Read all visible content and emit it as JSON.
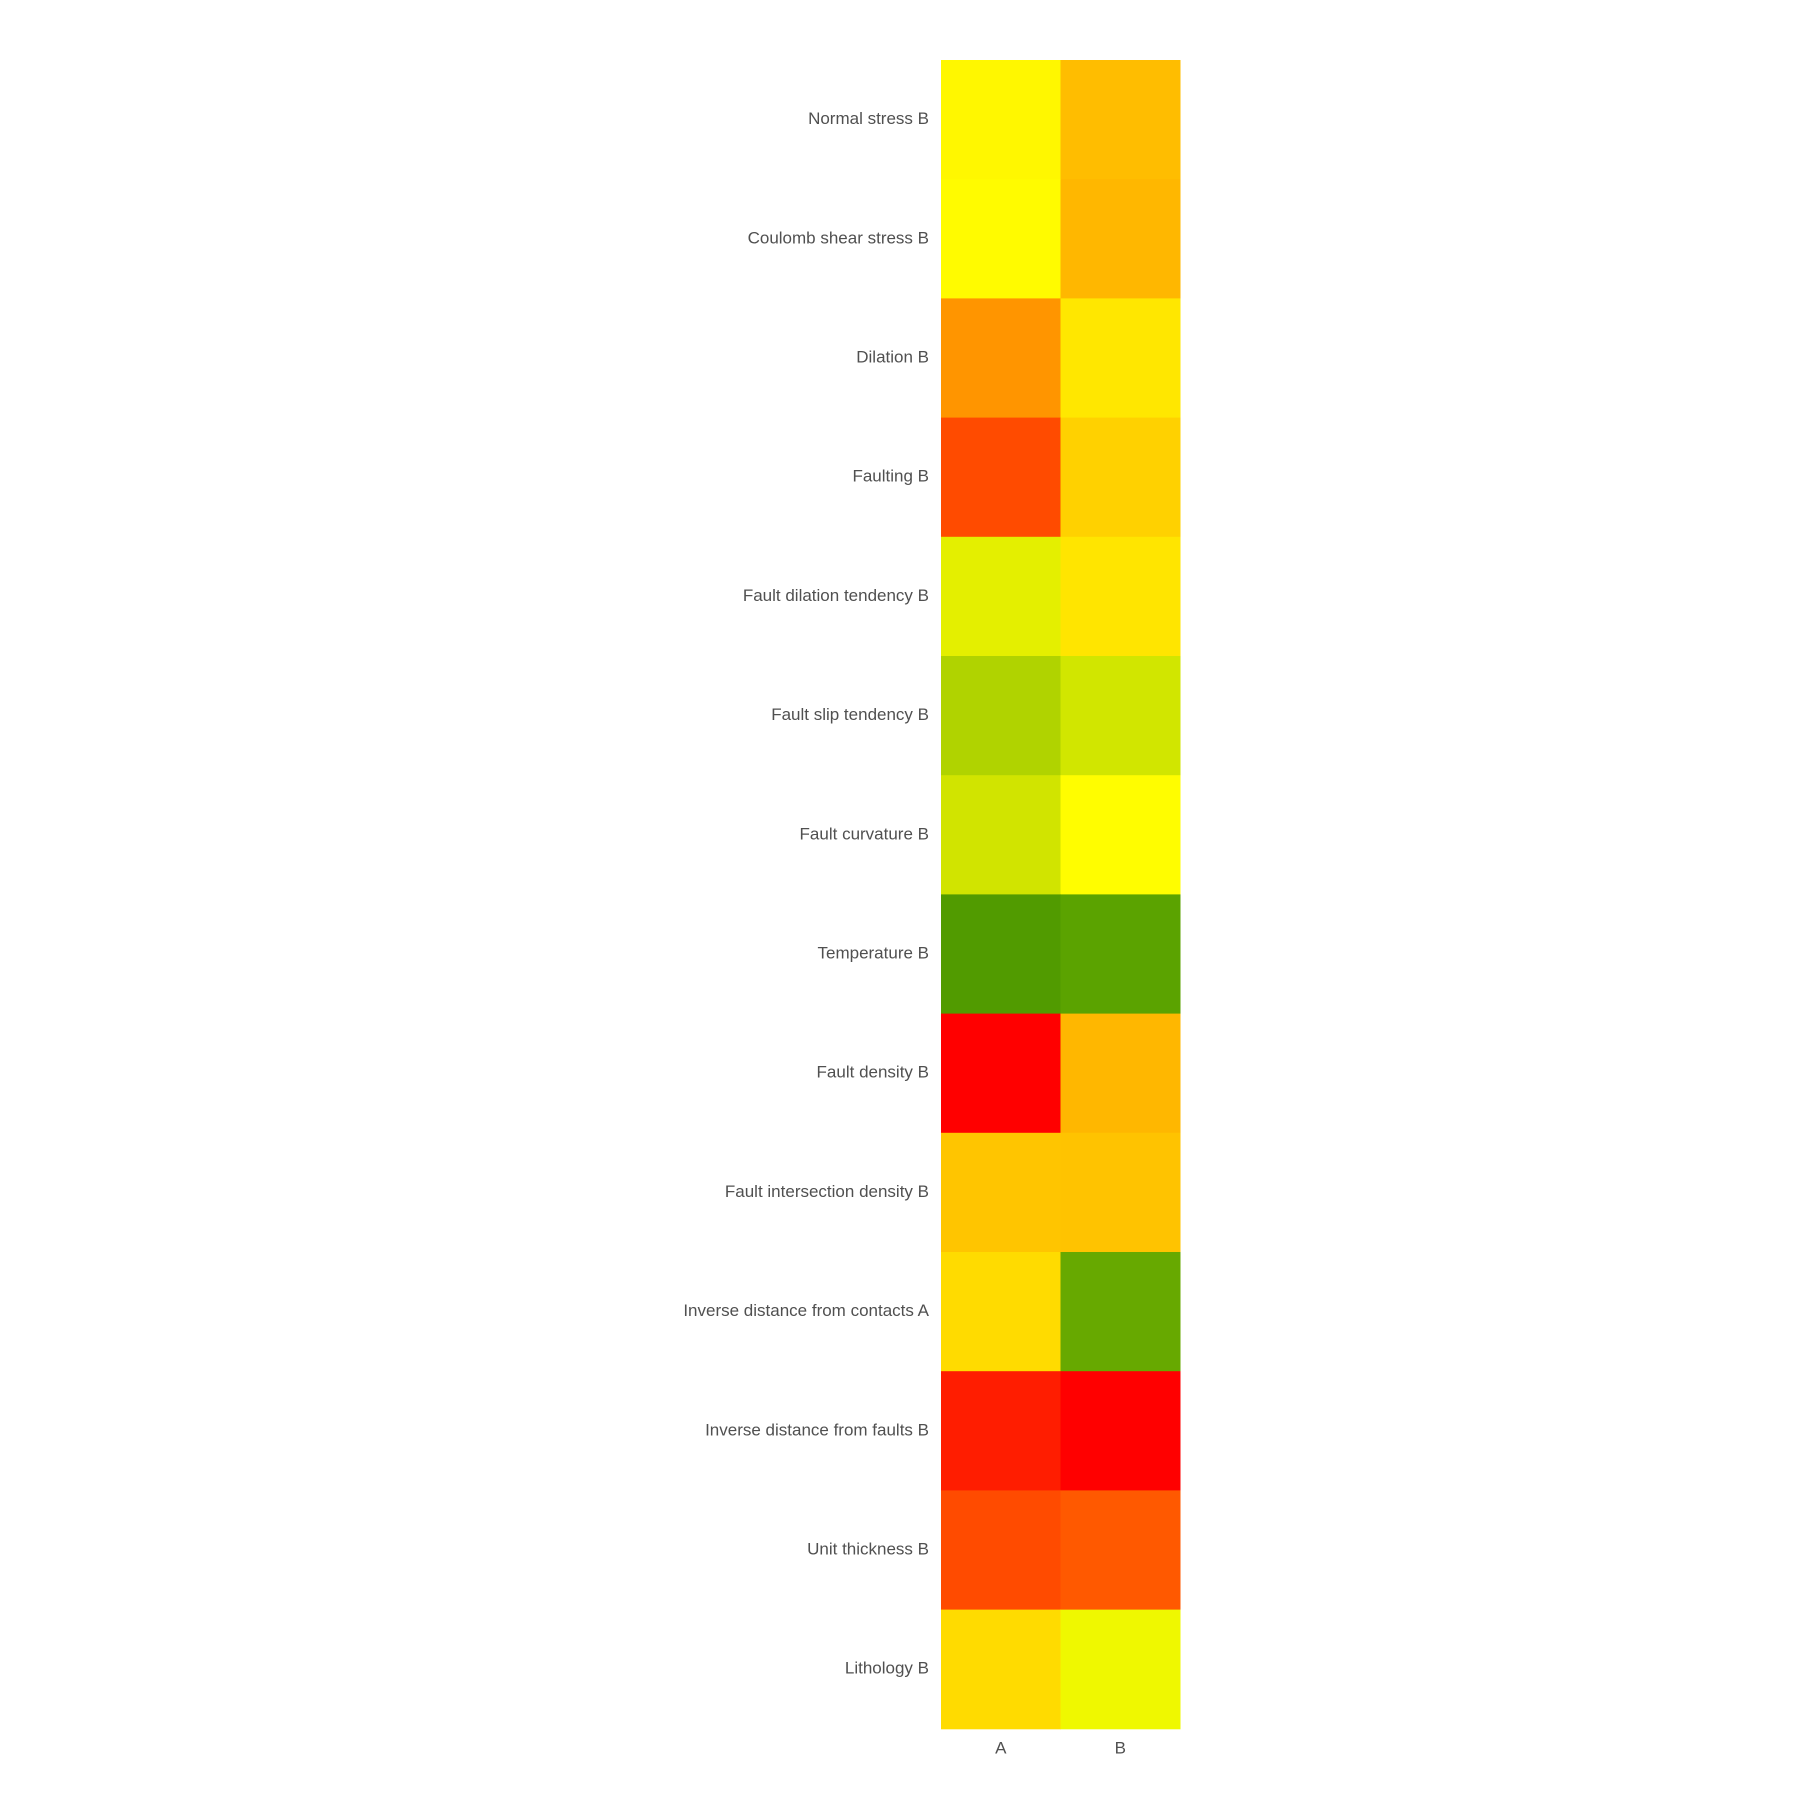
{
  "chart_data": {
    "type": "heatmap",
    "title": "",
    "xlabel": "",
    "ylabel": "",
    "x_categories": [
      "A",
      "B"
    ],
    "y_categories": [
      "Normal stress B",
      "Coulomb shear stress B",
      "Dilation B",
      "Faulting B",
      "Fault dilation tendency B",
      "Fault slip tendency B",
      "Fault curvature B",
      "Temperature B",
      "Fault density B",
      "Fault intersection density B",
      "Inverse distance from contacts A",
      "Inverse distance from faults B",
      "Unit thickness B",
      "Lithology B"
    ],
    "cells": [
      [
        "#fff700",
        "#ffbd00"
      ],
      [
        "#fffb00",
        "#ffb700"
      ],
      [
        "#ff9500",
        "#ffe700"
      ],
      [
        "#ff4b00",
        "#ffd100"
      ],
      [
        "#e4ef00",
        "#ffe500"
      ],
      [
        "#b0d300",
        "#d1e600"
      ],
      [
        "#d1e400",
        "#fffd00"
      ],
      [
        "#519b00",
        "#5ba300"
      ],
      [
        "#ff0000",
        "#ffb700"
      ],
      [
        "#ffc500",
        "#ffc300"
      ],
      [
        "#ffdb00",
        "#67a900"
      ],
      [
        "#ff1d00",
        "#ff0000"
      ],
      [
        "#ff4b00",
        "#ff5900"
      ],
      [
        "#ffdb00",
        "#eff800"
      ]
    ],
    "grid": false,
    "legend": "none"
  }
}
